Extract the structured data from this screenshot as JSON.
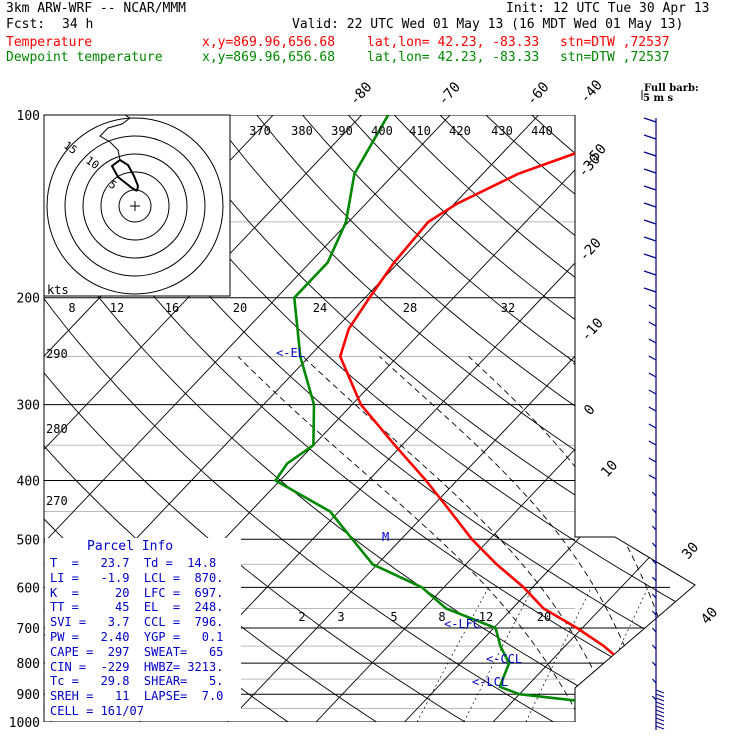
{
  "header": {
    "model": "3km ARW-WRF -- NCAR/MMM",
    "init": "Init: 12 UTC Tue 30 Apr 13",
    "fcst_label": "Fcst:",
    "fcst_value": "34 h",
    "valid": "Valid: 22 UTC Wed 01 May 13 (16 MDT Wed 01 May 13)",
    "temp_label": "Temperature",
    "dew_label": "Dewpoint temperature",
    "xy": "x,y=869.96,656.68",
    "latlon": "lat,lon= 42.23, -83.33",
    "stn": "stn=DTW ,72537"
  },
  "colors": {
    "temperature": "#ff0000",
    "dewpoint": "#008800",
    "info": "#0000cc",
    "grid": "#000000"
  },
  "barb_title": "Full barb:",
  "barb_units": "5 m s",
  "hodograph": {
    "unit_label": "kts",
    "ring_labels": [
      "15",
      "10",
      "5"
    ],
    "path_ref": "trace drawn from sounding"
  },
  "parcel_info": {
    "title": "Parcel Info",
    "rows": [
      "T  =   23.7  Td =  14.8",
      "LI =   -1.9  LCL =  870.",
      "K  =     20  LFC =  697.",
      "TT =     45  EL  =  248.",
      "SVI =   3.7  CCL =  796.",
      "PW =   2.40  YGP =   0.1",
      "CAPE =  297  SWEAT=   65",
      "CIN =  -229  HWBZ= 3213.",
      "Tc =   29.8  SHEAR=   5.",
      "SREH =   11  LAPSE=  7.0",
      "CELL = 161/07"
    ]
  },
  "level_labels": [
    "EL",
    "LFC",
    "CCL",
    "LCL",
    "M"
  ],
  "chart_data": {
    "type": "line",
    "title": "",
    "xlabel": "",
    "ylabel": "",
    "y_axis_pressure_ticks": [
      100,
      200,
      300,
      400,
      500,
      600,
      700,
      800,
      900,
      1000
    ],
    "temperature_axis_ticks": [
      "-80",
      "-70",
      "-60",
      "-50",
      "-40",
      "-30",
      "-20",
      "-10",
      "0",
      "10",
      "20",
      "30",
      "40"
    ],
    "theta_labels": [
      "370",
      "380",
      "390",
      "400",
      "410",
      "420",
      "430",
      "440"
    ],
    "theta_low_labels": [
      "290",
      "280",
      "270"
    ],
    "mixing_ratio_labels": [
      "2",
      "3",
      "5",
      "8",
      "12",
      "20"
    ],
    "wbz_labels": [
      "8",
      "12",
      "16",
      "20",
      "24",
      "28",
      "32"
    ],
    "series": [
      {
        "name": "Temperature",
        "points": [
          [
            1000,
            22.5
          ],
          [
            975,
            20.2
          ],
          [
            950,
            17.6
          ],
          [
            925,
            15.6
          ],
          [
            900,
            14.3
          ],
          [
            875,
            13.5
          ],
          [
            850,
            12.2
          ],
          [
            800,
            8.5
          ],
          [
            750,
            4.4
          ],
          [
            700,
            -0.6
          ],
          [
            650,
            -6.5
          ],
          [
            600,
            -11.0
          ],
          [
            550,
            -16.5
          ],
          [
            500,
            -22.0
          ],
          [
            450,
            -27.4
          ],
          [
            400,
            -33.5
          ],
          [
            350,
            -40.8
          ],
          [
            300,
            -49.0
          ],
          [
            250,
            -56.5
          ],
          [
            225,
            -58.5
          ],
          [
            200,
            -59.5
          ],
          [
            175,
            -60.5
          ],
          [
            150,
            -61.0
          ],
          [
            140,
            -59.7
          ],
          [
            125,
            -56.0
          ],
          [
            112,
            -50.0
          ],
          [
            100,
            -45.2
          ]
        ]
      },
      {
        "name": "Dewpoint temperature",
        "points": [
          [
            1000,
            14.0
          ],
          [
            950,
            12.8
          ],
          [
            925,
            8.0
          ],
          [
            900,
            0.0
          ],
          [
            875,
            -3.0
          ],
          [
            850,
            -3.5
          ],
          [
            800,
            -4.5
          ],
          [
            750,
            -7.3
          ],
          [
            700,
            -9.8
          ],
          [
            650,
            -17.5
          ],
          [
            600,
            -22.5
          ],
          [
            550,
            -30.5
          ],
          [
            500,
            -35.5
          ],
          [
            450,
            -41.0
          ],
          [
            400,
            -50.5
          ],
          [
            375,
            -51.0
          ],
          [
            350,
            -50.0
          ],
          [
            300,
            -54.3
          ],
          [
            250,
            -61.0
          ],
          [
            200,
            -68.0
          ],
          [
            175,
            -68.0
          ],
          [
            150,
            -70.3
          ],
          [
            125,
            -74.5
          ],
          [
            100,
            -77.0
          ]
        ]
      }
    ]
  }
}
